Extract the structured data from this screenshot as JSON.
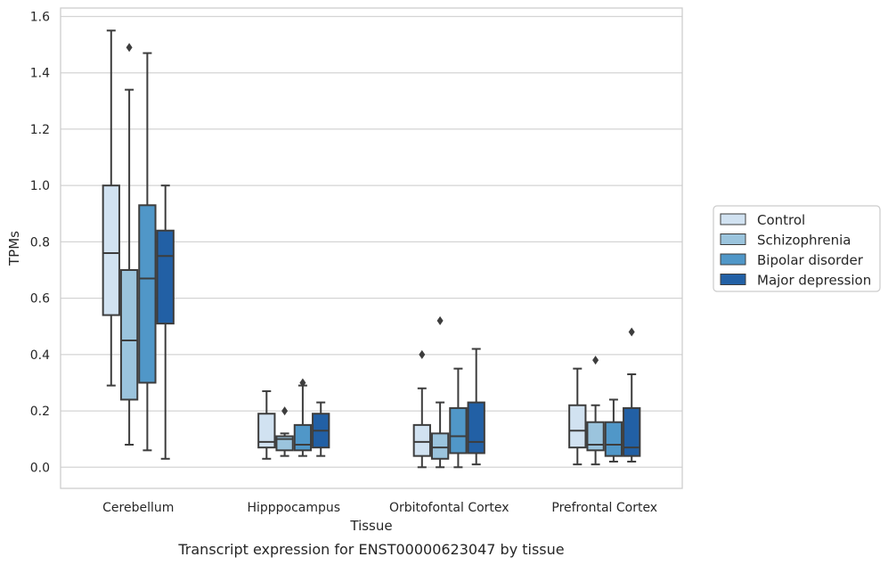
{
  "caption": "Transcript expression for ENST00000623047 by tissue",
  "chart_data": {
    "type": "boxplot",
    "title": "",
    "xlabel": "Tissue",
    "ylabel": "TPMs",
    "ylim": [
      -0.075,
      1.63
    ],
    "yticks": [
      "0.0",
      "0.2",
      "0.4",
      "0.6",
      "0.8",
      "1.0",
      "1.2",
      "1.4",
      "1.6"
    ],
    "grid": "horizontal",
    "legend_position": "right",
    "categories": [
      "Cerebellum",
      "Hipppocampus",
      "Orbitofontal Cortex",
      "Prefrontal Cortex"
    ],
    "series": [
      {
        "name": "Control",
        "color": "#d1e2f1",
        "boxes": [
          {
            "whislo": 0.29,
            "q1": 0.54,
            "med": 0.76,
            "q3": 1.0,
            "whishi": 1.55,
            "fliers": []
          },
          {
            "whislo": 0.03,
            "q1": 0.07,
            "med": 0.09,
            "q3": 0.19,
            "whishi": 0.27,
            "fliers": []
          },
          {
            "whislo": 0.0,
            "q1": 0.04,
            "med": 0.09,
            "q3": 0.15,
            "whishi": 0.28,
            "fliers": [
              0.4
            ]
          },
          {
            "whislo": 0.01,
            "q1": 0.07,
            "med": 0.13,
            "q3": 0.22,
            "whishi": 0.35,
            "fliers": []
          }
        ]
      },
      {
        "name": "Schizophrenia",
        "color": "#9bc4dd",
        "boxes": [
          {
            "whislo": 0.08,
            "q1": 0.24,
            "med": 0.45,
            "q3": 0.7,
            "whishi": 1.34,
            "fliers": [
              1.49
            ]
          },
          {
            "whislo": 0.04,
            "q1": 0.06,
            "med": 0.1,
            "q3": 0.11,
            "whishi": 0.12,
            "fliers": [
              0.2
            ]
          },
          {
            "whislo": 0.0,
            "q1": 0.03,
            "med": 0.07,
            "q3": 0.12,
            "whishi": 0.23,
            "fliers": [
              0.52
            ]
          },
          {
            "whislo": 0.01,
            "q1": 0.06,
            "med": 0.08,
            "q3": 0.16,
            "whishi": 0.22,
            "fliers": [
              0.38
            ]
          }
        ]
      },
      {
        "name": "Bipolar disorder",
        "color": "#5097c8",
        "boxes": [
          {
            "whislo": 0.06,
            "q1": 0.3,
            "med": 0.67,
            "q3": 0.93,
            "whishi": 1.47,
            "fliers": []
          },
          {
            "whislo": 0.04,
            "q1": 0.06,
            "med": 0.08,
            "q3": 0.15,
            "whishi": 0.29,
            "fliers": [
              0.3
            ]
          },
          {
            "whislo": 0.0,
            "q1": 0.05,
            "med": 0.11,
            "q3": 0.21,
            "whishi": 0.35,
            "fliers": []
          },
          {
            "whislo": 0.02,
            "q1": 0.04,
            "med": 0.08,
            "q3": 0.16,
            "whishi": 0.24,
            "fliers": []
          }
        ]
      },
      {
        "name": "Major depression",
        "color": "#2260a5",
        "boxes": [
          {
            "whislo": 0.03,
            "q1": 0.51,
            "med": 0.75,
            "q3": 0.84,
            "whishi": 1.0,
            "fliers": []
          },
          {
            "whislo": 0.04,
            "q1": 0.07,
            "med": 0.13,
            "q3": 0.19,
            "whishi": 0.23,
            "fliers": []
          },
          {
            "whislo": 0.01,
            "q1": 0.05,
            "med": 0.09,
            "q3": 0.23,
            "whishi": 0.42,
            "fliers": []
          },
          {
            "whislo": 0.02,
            "q1": 0.04,
            "med": 0.07,
            "q3": 0.21,
            "whishi": 0.33,
            "fliers": [
              0.48
            ]
          }
        ]
      }
    ]
  }
}
